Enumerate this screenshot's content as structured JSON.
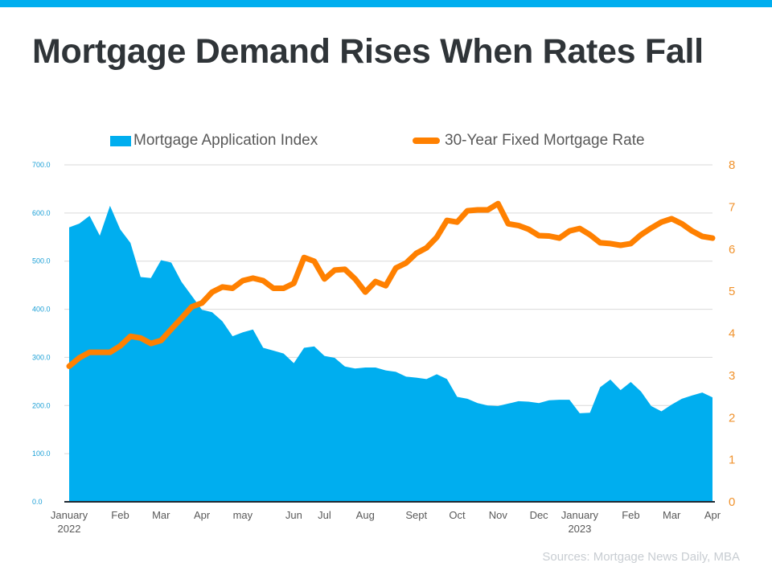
{
  "title": "Mortgage Demand Rises When Rates Fall",
  "source": "Sources: Mortgage News Daily, MBA",
  "colors": {
    "top_bar": "#00aeef",
    "area": "#00aeef",
    "line": "#ff8000",
    "left_axis": "#1a9fd6",
    "right_axis": "#f0922c"
  },
  "chart_data": {
    "type": "area+line",
    "title": "Mortgage Demand Rises When Rates Fall",
    "legend_placement": "top",
    "grid": true,
    "x_ticks": [
      {
        "index": 0,
        "label": "January",
        "sub": "2022"
      },
      {
        "index": 5,
        "label": "Feb",
        "sub": ""
      },
      {
        "index": 9,
        "label": "Mar",
        "sub": ""
      },
      {
        "index": 13,
        "label": "Apr",
        "sub": ""
      },
      {
        "index": 17,
        "label": "may",
        "sub": ""
      },
      {
        "index": 22,
        "label": "Jun",
        "sub": ""
      },
      {
        "index": 25,
        "label": "Jul",
        "sub": ""
      },
      {
        "index": 29,
        "label": "Aug",
        "sub": ""
      },
      {
        "index": 34,
        "label": "Sept",
        "sub": ""
      },
      {
        "index": 38,
        "label": "Oct",
        "sub": ""
      },
      {
        "index": 42,
        "label": "Nov",
        "sub": ""
      },
      {
        "index": 46,
        "label": "Dec",
        "sub": ""
      },
      {
        "index": 50,
        "label": "January",
        "sub": "2023"
      },
      {
        "index": 55,
        "label": "Feb",
        "sub": ""
      },
      {
        "index": 59,
        "label": "Mar",
        "sub": ""
      },
      {
        "index": 63,
        "label": "Apr",
        "sub": ""
      }
    ],
    "y_left": {
      "range": [
        0,
        700
      ],
      "ticks": [
        "0.0",
        "100.0",
        "200.0",
        "300.0",
        "400.0",
        "500.0",
        "600.0",
        "700.0"
      ]
    },
    "y_right": {
      "range": [
        0,
        8
      ],
      "ticks": [
        "0",
        "1",
        "2",
        "3",
        "4",
        "5",
        "6",
        "7",
        "8"
      ]
    },
    "series": [
      {
        "name": "Mortgage Application Index",
        "type": "area",
        "axis": "left",
        "values": [
          570,
          578,
          594,
          553,
          615,
          566,
          538,
          467,
          465,
          502,
          497,
          457,
          428,
          399,
          394,
          375,
          344,
          352,
          358,
          320,
          314,
          308,
          288,
          320,
          323,
          303,
          299,
          281,
          277,
          279,
          279,
          273,
          270,
          260,
          258,
          255,
          265,
          255,
          218,
          214,
          205,
          200,
          199,
          204,
          209,
          208,
          205,
          211,
          212,
          212,
          184,
          185,
          238,
          254,
          232,
          249,
          229,
          199,
          188,
          202,
          214,
          221,
          227,
          217
        ]
      },
      {
        "name": "30-Year Fixed Mortgage Rate",
        "type": "line",
        "axis": "right",
        "values": [
          3.22,
          3.42,
          3.55,
          3.55,
          3.55,
          3.7,
          3.93,
          3.89,
          3.76,
          3.83,
          4.1,
          4.36,
          4.63,
          4.72,
          4.98,
          5.1,
          5.07,
          5.25,
          5.31,
          5.25,
          5.07,
          5.07,
          5.19,
          5.8,
          5.71,
          5.29,
          5.5,
          5.52,
          5.29,
          4.98,
          5.23,
          5.13,
          5.55,
          5.67,
          5.9,
          6.03,
          6.28,
          6.68,
          6.64,
          6.91,
          6.93,
          6.93,
          7.08,
          6.6,
          6.56,
          6.47,
          6.32,
          6.31,
          6.26,
          6.43,
          6.49,
          6.34,
          6.15,
          6.13,
          6.09,
          6.13,
          6.34,
          6.5,
          6.64,
          6.72,
          6.6,
          6.43,
          6.3,
          6.26
        ]
      }
    ]
  }
}
